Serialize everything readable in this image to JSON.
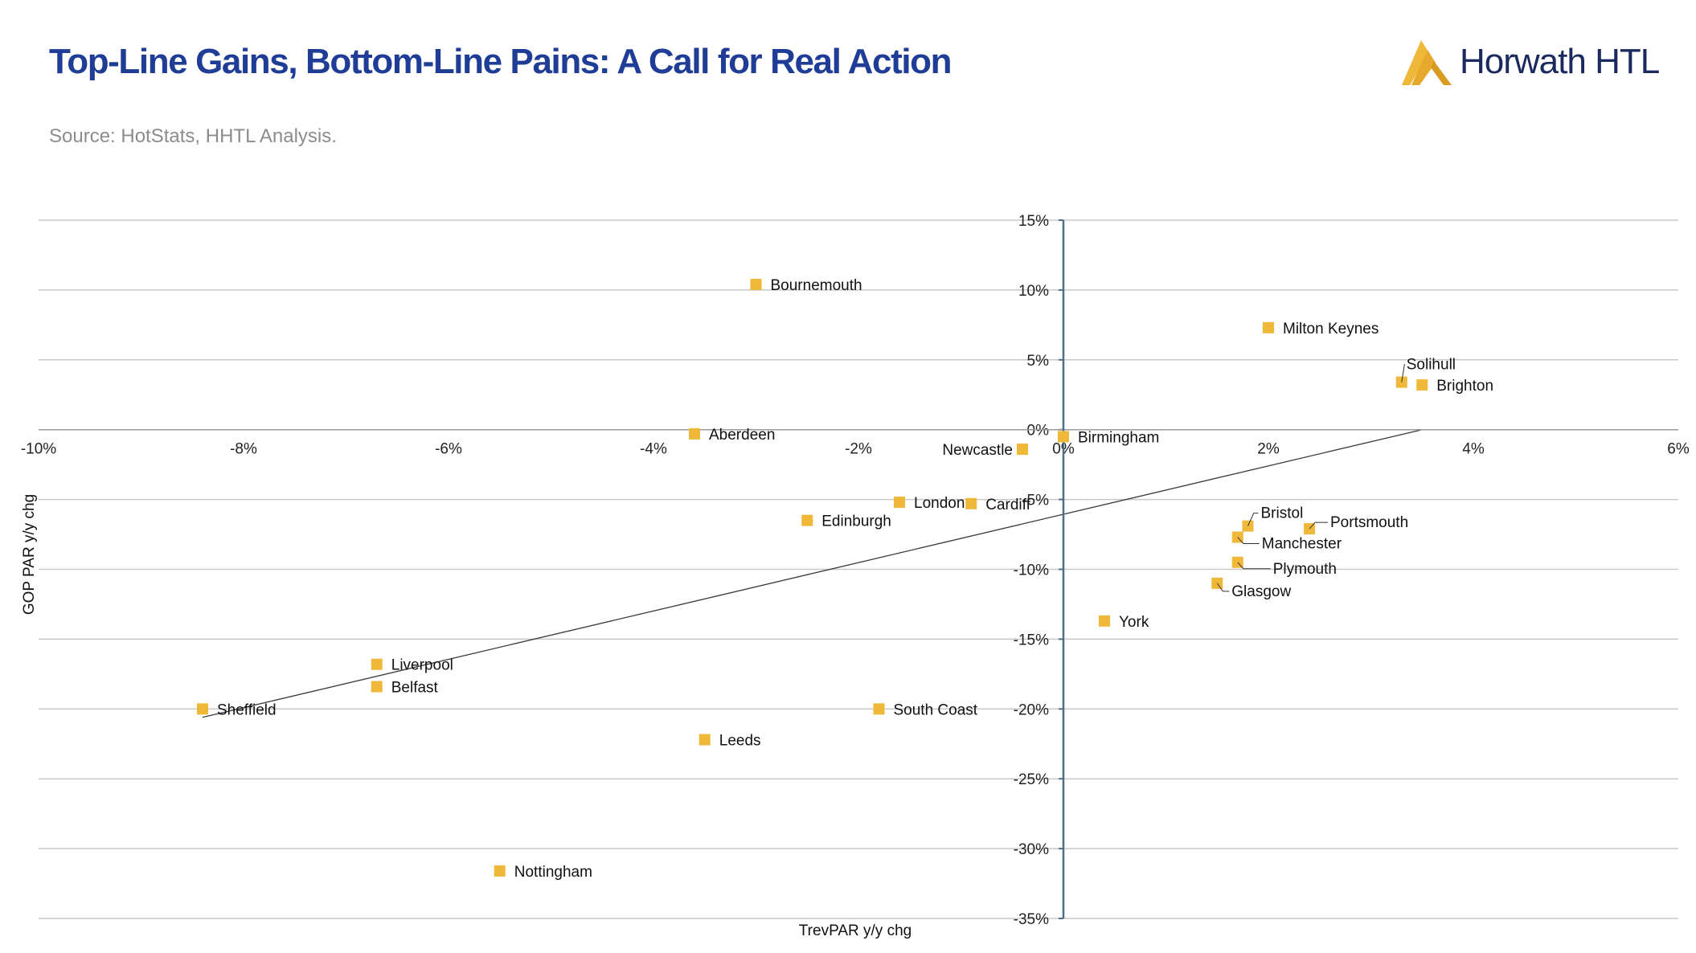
{
  "header": {
    "title": "Top-Line Gains, Bottom-Line Pains: A Call for Real Action",
    "source": "Source: HotStats, HHTL Analysis.",
    "logo_text": "Horwath HTL"
  },
  "colors": {
    "title": "#1f3d96",
    "marker": "#f0b838",
    "grid": "#c8c8c8",
    "axis": "#4f6f86",
    "trendline": "#3a3a3a"
  },
  "chart_data": {
    "type": "scatter",
    "xlabel": "TrevPAR y/y chg",
    "ylabel": "GOP PAR y/y chg",
    "xlim": [
      -10,
      6
    ],
    "ylim": [
      -35,
      15
    ],
    "x_ticks": [
      -10,
      -8,
      -6,
      -4,
      -2,
      0,
      2,
      4,
      6
    ],
    "y_ticks": [
      15,
      10,
      5,
      0,
      -5,
      -10,
      -15,
      -20,
      -25,
      -30,
      -35
    ],
    "x_tick_labels": [
      "-10%",
      "-8%",
      "-6%",
      "-4%",
      "-2%",
      "0%",
      "2%",
      "4%",
      "6%"
    ],
    "y_tick_labels": [
      "15%",
      "10%",
      "5%",
      "0%",
      "-5%",
      "-10%",
      "-15%",
      "-20%",
      "-25%",
      "-30%",
      "-35%"
    ],
    "grid": "horizontal",
    "trendline": {
      "x": [
        -8.4,
        3.5
      ],
      "y": [
        -20.6,
        0.0
      ]
    },
    "points": [
      {
        "label": "Bournemouth",
        "x": -3.0,
        "y": 10.4
      },
      {
        "label": "Milton Keynes",
        "x": 2.0,
        "y": 7.3
      },
      {
        "label": "Solihull",
        "x": 3.3,
        "y": 3.4
      },
      {
        "label": "Brighton",
        "x": 3.5,
        "y": 3.2
      },
      {
        "label": "Aberdeen",
        "x": -3.6,
        "y": -0.3
      },
      {
        "label": "Birmingham",
        "x": 0.0,
        "y": -0.5
      },
      {
        "label": "Newcastle",
        "x": -0.4,
        "y": -1.4
      },
      {
        "label": "London",
        "x": -1.6,
        "y": -5.2
      },
      {
        "label": "Cardiff",
        "x": -0.9,
        "y": -5.3
      },
      {
        "label": "Edinburgh",
        "x": -2.5,
        "y": -6.5
      },
      {
        "label": "Bristol",
        "x": 1.8,
        "y": -6.9
      },
      {
        "label": "Portsmouth",
        "x": 2.4,
        "y": -7.1
      },
      {
        "label": "Manchester",
        "x": 1.7,
        "y": -7.7
      },
      {
        "label": "Plymouth",
        "x": 1.7,
        "y": -9.5
      },
      {
        "label": "Glasgow",
        "x": 1.5,
        "y": -11.0
      },
      {
        "label": "York",
        "x": 0.4,
        "y": -13.7
      },
      {
        "label": "Liverpool",
        "x": -6.7,
        "y": -16.8
      },
      {
        "label": "Belfast",
        "x": -6.7,
        "y": -18.4
      },
      {
        "label": "Sheffield",
        "x": -8.4,
        "y": -20.0
      },
      {
        "label": "South Coast",
        "x": -1.8,
        "y": -20.0
      },
      {
        "label": "Leeds",
        "x": -3.5,
        "y": -22.2
      },
      {
        "label": "Nottingham",
        "x": -5.5,
        "y": -31.6
      }
    ]
  }
}
